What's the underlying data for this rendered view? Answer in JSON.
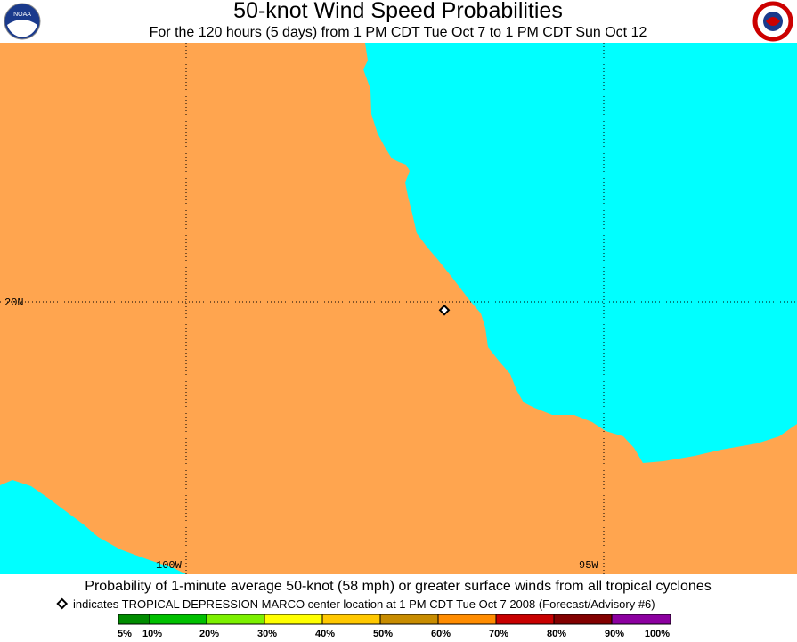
{
  "header": {
    "title": "50-knot Wind Speed Probabilities",
    "subtitle": "For the 120 hours (5 days) from 1 PM CDT Tue Oct 7 to 1 PM CDT Sun Oct 12",
    "logo_left": "NOAA"
  },
  "map": {
    "lat_label": "20N",
    "lon_labels": [
      "100W",
      "95W"
    ]
  },
  "footer": {
    "caption": "Probability of 1-minute average 50-knot (58 mph) or greater surface winds from all tropical cyclones",
    "marker_note": "indicates TROPICAL DEPRESSION MARCO center location at 1 PM CDT Tue Oct 7 2008 (Forecast/Advisory #6)",
    "scale": {
      "labels": [
        "5%",
        "10%",
        "20%",
        "30%",
        "40%",
        "50%",
        "60%",
        "70%",
        "80%",
        "90%",
        "100%"
      ],
      "colors": [
        "#008c00",
        "#00c000",
        "#7cf000",
        "#ffff00",
        "#ffc800",
        "#c88c00",
        "#ff8c00",
        "#c80000",
        "#820000",
        "#8c00a0"
      ]
    }
  }
}
